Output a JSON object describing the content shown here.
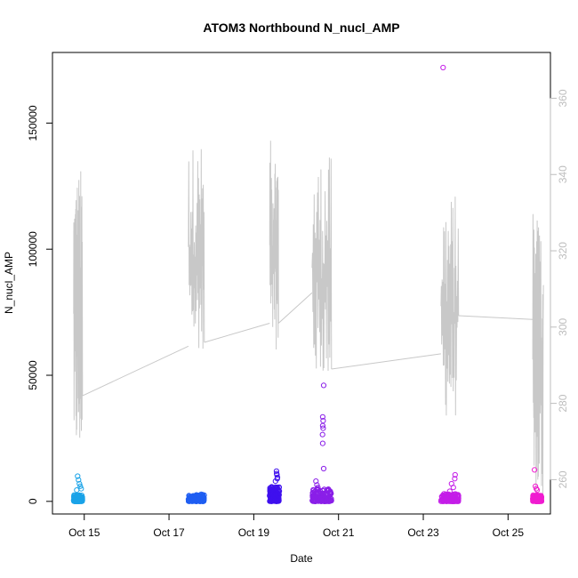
{
  "chart_data": {
    "type": "scatter",
    "title": "ATOM3 Northbound N_nucl_AMP",
    "xlabel": "Date",
    "ylabel": "N_nucl_AMP",
    "x_ticks": [
      "Oct 15",
      "Oct 17",
      "Oct 19",
      "Oct 21",
      "Oct 23",
      "Oct 25"
    ],
    "xlim": [
      "2014-10-14T06:00",
      "2014-10-26T00:00"
    ],
    "ylim": [
      -5000,
      178000
    ],
    "y_ticks": [
      0,
      50000,
      100000,
      150000
    ],
    "y_tick_labels": [
      "0",
      "50000",
      "100000",
      "150000"
    ],
    "y2lim": [
      251,
      372
    ],
    "y2_ticks": [
      260,
      280,
      300,
      320,
      340,
      360
    ],
    "y2_tick_labels": [
      "260",
      "280",
      "300",
      "320",
      "340",
      "360"
    ],
    "y2_color": "#bdbdbd",
    "line_color": "#c8c8c8",
    "grid": false,
    "series": [
      {
        "color": "#1aa3e8",
        "x_start": "2014-10-14T18:00",
        "x_end": "2014-10-14T23:00",
        "typical_max": 2500,
        "peaks": [
          [
            0.45,
            10000
          ],
          [
            0.55,
            8500
          ],
          [
            0.65,
            7000
          ],
          [
            0.75,
            6000
          ],
          [
            0.85,
            5000
          ],
          [
            0.35,
            4500
          ]
        ]
      },
      {
        "color": "#1f5ef2",
        "x_start": "2014-10-17T11:00",
        "x_end": "2014-10-17T20:00",
        "typical_max": 2600,
        "peaks": [
          [
            0.8,
            2800
          ],
          [
            0.9,
            2600
          ]
        ]
      },
      {
        "color": "#3f10ee",
        "x_start": "2014-10-19T09:00",
        "x_end": "2014-10-19T14:30",
        "typical_max": 6000,
        "peaks": [
          [
            0.7,
            12000
          ],
          [
            0.72,
            11000
          ],
          [
            0.75,
            10500
          ],
          [
            0.8,
            9500
          ],
          [
            0.78,
            9000
          ],
          [
            0.6,
            8000
          ]
        ]
      },
      {
        "color": "#8a1fe8",
        "x_start": "2014-10-20T09:00",
        "x_end": "2014-10-20T20:00",
        "typical_max": 5000,
        "peaks": [
          [
            0.6,
            46000
          ],
          [
            0.55,
            33500
          ],
          [
            0.57,
            32000
          ],
          [
            0.55,
            30000
          ],
          [
            0.57,
            29000
          ],
          [
            0.54,
            26500
          ],
          [
            0.55,
            23000
          ],
          [
            0.6,
            13000
          ],
          [
            0.2,
            8000
          ],
          [
            0.25,
            6500
          ],
          [
            0.3,
            5500
          ]
        ]
      },
      {
        "color": "#c41ee8",
        "x_start": "2014-10-23T10:00",
        "x_end": "2014-10-23T20:00",
        "typical_max": 3000,
        "peaks": [
          [
            0.12,
            172000
          ],
          [
            0.8,
            10500
          ],
          [
            0.78,
            9000
          ],
          [
            0.6,
            7000
          ],
          [
            0.7,
            5500
          ],
          [
            0.5,
            4000
          ]
        ]
      },
      {
        "color": "#f01cd0",
        "x_start": "2014-10-25T14:00",
        "x_end": "2014-10-25T19:00",
        "typical_max": 2500,
        "peaks": [
          [
            0.2,
            12500
          ],
          [
            0.3,
            6000
          ],
          [
            0.4,
            5000
          ],
          [
            0.5,
            4500
          ]
        ]
      }
    ],
    "line_series": {
      "axis": "right",
      "color": "#c8c8c8",
      "segments": [
        {
          "x_start": "2014-10-14T18:00",
          "x_end": "2014-10-14T23:00",
          "min": 265,
          "max": 342,
          "end": 282
        },
        {
          "x_start": "2014-10-17T11:00",
          "x_end": "2014-10-17T20:00",
          "min": 294,
          "max": 348,
          "end": 296
        },
        {
          "x_start": "2014-10-19T09:00",
          "x_end": "2014-10-19T14:00",
          "min": 294,
          "max": 349,
          "end": 301
        },
        {
          "x_start": "2014-10-20T09:00",
          "x_end": "2014-10-20T20:00",
          "min": 286,
          "max": 345,
          "end": 289
        },
        {
          "x_start": "2014-10-23T10:00",
          "x_end": "2014-10-23T20:00",
          "min": 276,
          "max": 335,
          "end": 303
        },
        {
          "x_start": "2014-10-25T14:00",
          "x_end": "2014-10-25T20:00",
          "min": 253,
          "max": 330,
          "end": 311
        }
      ],
      "connectors": [
        {
          "from": "2014-10-14T23:00",
          "y_from": 282,
          "to": "2014-10-17T11:00",
          "y_to": 295
        },
        {
          "from": "2014-10-17T20:00",
          "y_from": 296,
          "to": "2014-10-19T09:00",
          "y_to": 301
        },
        {
          "from": "2014-10-19T14:00",
          "y_from": 301,
          "to": "2014-10-20T09:00",
          "y_to": 309
        },
        {
          "from": "2014-10-20T20:00",
          "y_from": 289,
          "to": "2014-10-23T10:00",
          "y_to": 293
        },
        {
          "from": "2014-10-23T20:00",
          "y_from": 303,
          "to": "2014-10-25T14:00",
          "y_to": 302
        }
      ]
    }
  }
}
